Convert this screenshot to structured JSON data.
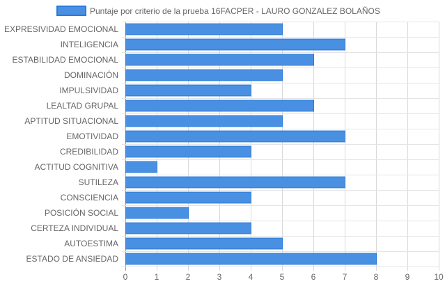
{
  "chart_data": {
    "type": "bar",
    "orientation": "horizontal",
    "categories": [
      "EXPRESIVIDAD EMOCIONAL",
      "INTELIGENCIA",
      "ESTABILIDAD EMOCIONAL",
      "DOMINACIÓN",
      "IMPULSIVIDAD",
      "LEALTAD GRUPAL",
      "APTITUD SITUACIONAL",
      "EMOTIVIDAD",
      "CREDIBILIDAD",
      "ACTITUD COGNITIVA",
      "SUTILEZA",
      "CONSCIENCIA",
      "POSICIÓN SOCIAL",
      "CERTEZA INDIVIDUAL",
      "AUTOESTIMA",
      "ESTADO DE ANSIEDAD"
    ],
    "series": [
      {
        "name": "Puntaje por criterio de la prueba 16FACPER - LAURO GONZALEZ BOLAÑOS",
        "values": [
          5,
          7,
          6,
          5,
          4,
          6,
          5,
          7,
          4,
          1,
          7,
          4,
          2,
          4,
          5,
          8
        ],
        "color": "#4a90e2",
        "border_color": "#2b7bd9"
      }
    ],
    "xlim": [
      0,
      10
    ],
    "x_ticks": [
      "0",
      "1",
      "2",
      "3",
      "4",
      "5",
      "6",
      "7",
      "8",
      "9",
      "10"
    ],
    "grid": true,
    "legend_position": "top"
  }
}
